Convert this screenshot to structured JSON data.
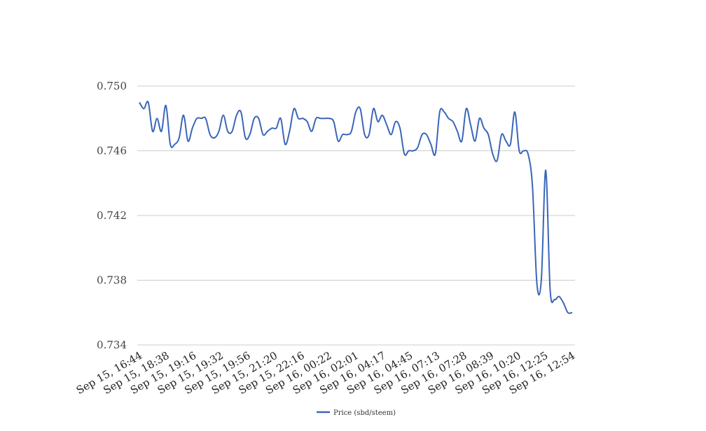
{
  "chart_data": {
    "type": "line",
    "title": "",
    "xlabel": "",
    "ylabel": "",
    "ylim": [
      0.734,
      0.75
    ],
    "yticks": [
      "0.734",
      "0.738",
      "0.742",
      "0.746",
      "0.750"
    ],
    "ytick_values": [
      0.734,
      0.738,
      0.742,
      0.746,
      0.75
    ],
    "x_tick_labels": [
      "Sep 15, 16:44",
      "Sep 15, 18:38",
      "Sep 15, 19:16",
      "Sep 15, 19:32",
      "Sep 15, 19:56",
      "Sep 15, 21:20",
      "Sep 15, 22:16",
      "Sep 16, 00:22",
      "Sep 16, 02:01",
      "Sep 16, 04:17",
      "Sep 16, 04:45",
      "Sep 16, 07:13",
      "Sep 16, 07:28",
      "Sep 16, 08:39",
      "Sep 16, 10:20",
      "Sep 16, 12:25",
      "Sep 16, 12:54"
    ],
    "grid": true,
    "legend_position": "bottom",
    "color": "#3a66b8",
    "series": [
      {
        "name": "Price (sbd/steem)",
        "values": [
          0.749,
          0.7486,
          0.749,
          0.7472,
          0.748,
          0.7472,
          0.7488,
          0.7464,
          0.7464,
          0.7468,
          0.7482,
          0.7466,
          0.7474,
          0.748,
          0.748,
          0.748,
          0.747,
          0.7468,
          0.7472,
          0.7482,
          0.7472,
          0.7472,
          0.7482,
          0.7484,
          0.7468,
          0.747,
          0.748,
          0.748,
          0.747,
          0.7472,
          0.7474,
          0.7474,
          0.748,
          0.7464,
          0.7472,
          0.7486,
          0.748,
          0.748,
          0.7478,
          0.7472,
          0.748,
          0.748,
          0.748,
          0.748,
          0.7478,
          0.7466,
          0.747,
          0.747,
          0.7472,
          0.7484,
          0.7486,
          0.747,
          0.747,
          0.7486,
          0.7478,
          0.7482,
          0.7476,
          0.747,
          0.7478,
          0.7474,
          0.7458,
          0.746,
          0.746,
          0.7462,
          0.747,
          0.747,
          0.7464,
          0.7458,
          0.7484,
          0.7484,
          0.748,
          0.7478,
          0.7472,
          0.7466,
          0.7486,
          0.7476,
          0.7466,
          0.748,
          0.7474,
          0.747,
          0.7458,
          0.7454,
          0.747,
          0.7466,
          0.7464,
          0.7484,
          0.746,
          0.746,
          0.7458,
          0.7438,
          0.7378,
          0.738,
          0.7448,
          0.7374,
          0.7368,
          0.737,
          0.7366,
          0.736,
          0.736
        ]
      }
    ]
  }
}
